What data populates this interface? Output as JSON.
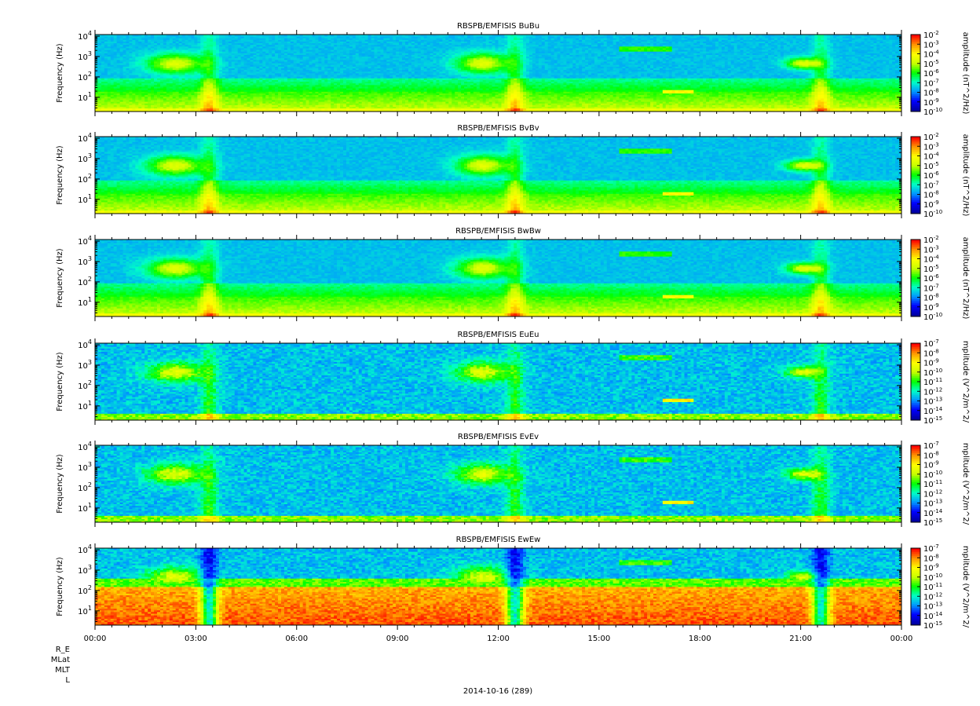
{
  "chart_data": {
    "type": "heatmap",
    "panels": [
      {
        "title": "RBSPB/EMFISIS  BuBu",
        "ylabel": "Frequency (Hz)",
        "yscale": "log",
        "yticks": [
          "10^1",
          "10^2",
          "10^3",
          "10^4"
        ],
        "colorbar": {
          "label": "amplitude (nT^2/Hz)",
          "exponents": [
            -2,
            -3,
            -4,
            -5,
            -6,
            -7,
            -8,
            -9,
            -10
          ]
        }
      },
      {
        "title": "RBSPB/EMFISIS  BvBv",
        "ylabel": "Frequency (Hz)",
        "yscale": "log",
        "yticks": [
          "10^1",
          "10^2",
          "10^3",
          "10^4"
        ],
        "colorbar": {
          "label": "amplitude (nT^2/Hz)",
          "exponents": [
            -2,
            -3,
            -4,
            -5,
            -6,
            -7,
            -8,
            -9,
            -10
          ]
        }
      },
      {
        "title": "RBSPB/EMFISIS  BwBw",
        "ylabel": "Frequency (Hz)",
        "yscale": "log",
        "yticks": [
          "10^1",
          "10^2",
          "10^3",
          "10^4"
        ],
        "colorbar": {
          "label": "amplitude (nT^2/Hz)",
          "exponents": [
            -2,
            -3,
            -4,
            -5,
            -6,
            -7,
            -8,
            -9,
            -10
          ]
        }
      },
      {
        "title": "RBSPB/EMFISIS  EuEu",
        "ylabel": "Frequency (Hz)",
        "yscale": "log",
        "yticks": [
          "10^1",
          "10^2",
          "10^3",
          "10^4"
        ],
        "colorbar": {
          "label": "mplitude (V^2/m^2/",
          "exponents": [
            -7,
            -8,
            -9,
            -10,
            -11,
            -12,
            -13,
            -14,
            -15
          ]
        }
      },
      {
        "title": "RBSPB/EMFISIS  EvEv",
        "ylabel": "Frequency (Hz)",
        "yscale": "log",
        "yticks": [
          "10^1",
          "10^2",
          "10^3",
          "10^4"
        ],
        "colorbar": {
          "label": "mplitude (V^2/m^2/",
          "exponents": [
            -7,
            -8,
            -9,
            -10,
            -11,
            -12,
            -13,
            -14,
            -15
          ]
        }
      },
      {
        "title": "RBSPB/EMFISIS  EwEw",
        "ylabel": "Frequency (Hz)",
        "yscale": "log",
        "yticks": [
          "10^1",
          "10^2",
          "10^3",
          "10^4"
        ],
        "colorbar": {
          "label": "mplitude (V^2/m^2/",
          "exponents": [
            -7,
            -8,
            -9,
            -10,
            -11,
            -12,
            -13,
            -14,
            -15
          ]
        }
      }
    ],
    "x_ticks": [
      "00:00",
      "03:00",
      "06:00",
      "09:00",
      "12:00",
      "15:00",
      "18:00",
      "21:00",
      "00:00"
    ],
    "xlim_hours": [
      0,
      24
    ],
    "ylim_hz": [
      2,
      12000
    ],
    "ephemeris_labels": [
      "R_E",
      "MLat",
      "MLT",
      "L"
    ],
    "date_label": "2014-10-16 (289)",
    "colormap": [
      "#0000a0",
      "#0000ff",
      "#0096ff",
      "#00ffc8",
      "#00ff00",
      "#c8ff00",
      "#ffff00",
      "#ff9600",
      "#ff0000"
    ],
    "features": [
      {
        "name": "chorus-1",
        "start_h": 1.6,
        "end_h": 3.2,
        "f_low": 150,
        "f_high": 1400
      },
      {
        "name": "chorus-2",
        "start_h": 10.8,
        "end_h": 12.3,
        "f_low": 150,
        "f_high": 1500
      },
      {
        "name": "chorus-3",
        "start_h": 20.6,
        "end_h": 21.6,
        "f_low": 250,
        "f_high": 900
      },
      {
        "name": "perigee-1",
        "center_h": 3.4
      },
      {
        "name": "perigee-2",
        "center_h": 12.5
      },
      {
        "name": "perigee-3",
        "center_h": 21.6
      },
      {
        "name": "vlf-line",
        "start_h": 15.6,
        "end_h": 17.2,
        "f_low": 1800,
        "f_high": 3500
      },
      {
        "name": "narrowband",
        "start_h": 16.9,
        "end_h": 17.8,
        "f_low": 15,
        "f_high": 25
      }
    ]
  }
}
